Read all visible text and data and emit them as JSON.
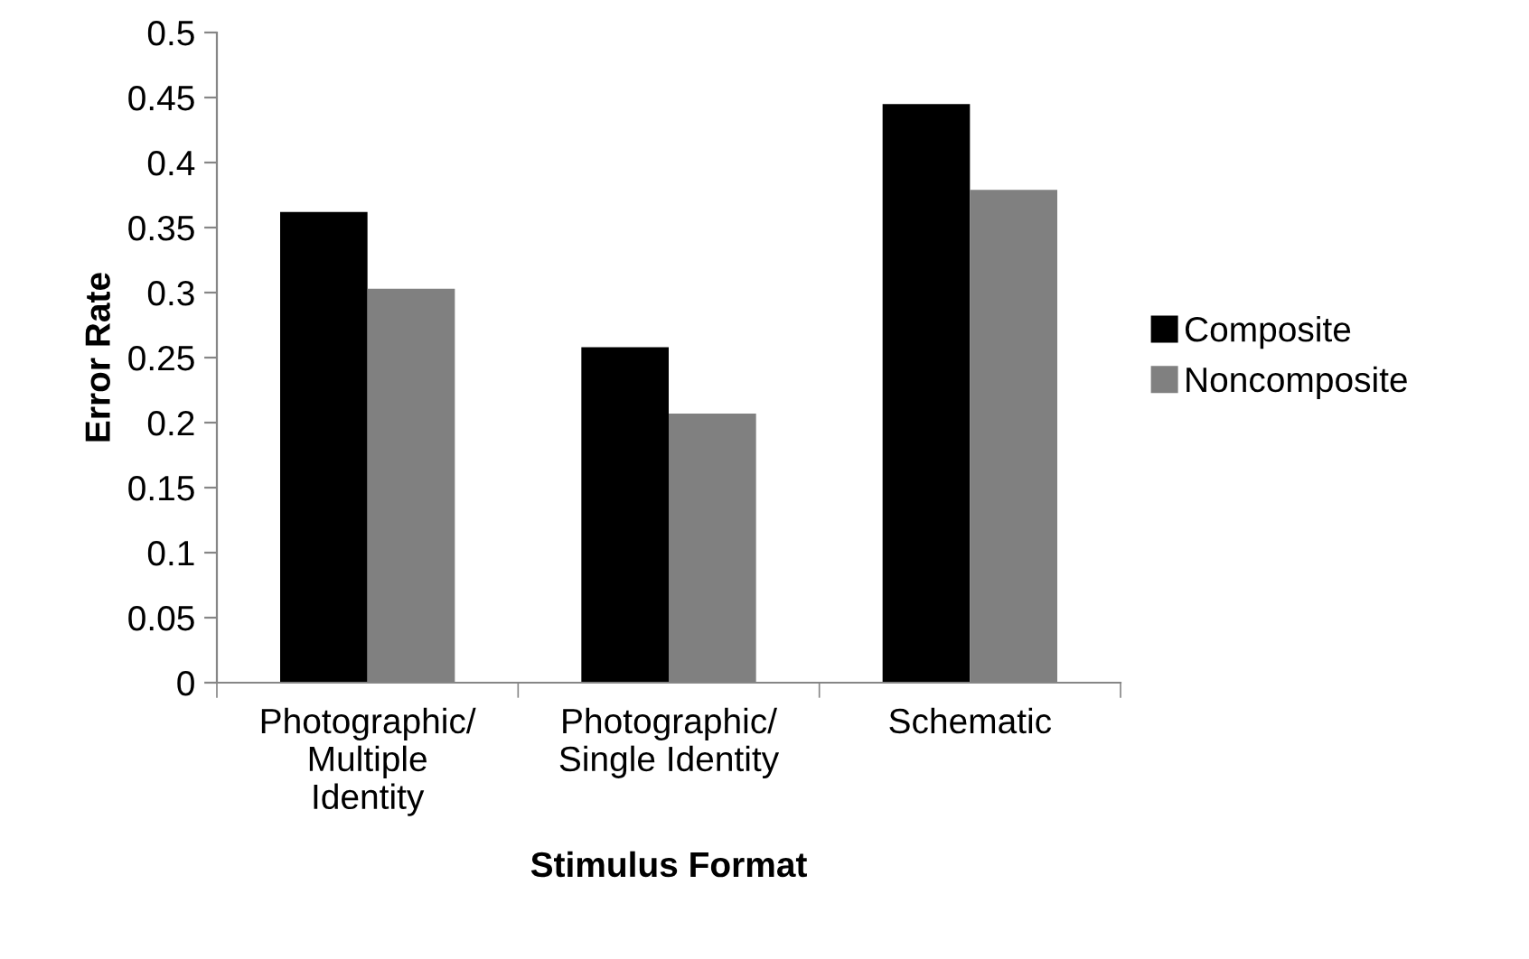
{
  "chart_data": {
    "type": "bar",
    "xlabel": "Stimulus Format",
    "ylabel": "Error Rate",
    "categories": [
      "Photographic/\nMultiple\nIdentity",
      "Photographic/\nSingle Identity",
      "Schematic"
    ],
    "series": [
      {
        "name": "Composite",
        "color": "#000000",
        "values": [
          0.362,
          0.258,
          0.445
        ]
      },
      {
        "name": "Noncomposite",
        "color": "#808080",
        "values": [
          0.303,
          0.207,
          0.379
        ]
      }
    ],
    "ylim": [
      0,
      0.5
    ],
    "yticks": [
      0,
      0.05,
      0.1,
      0.15,
      0.2,
      0.25,
      0.3,
      0.35,
      0.4,
      0.45,
      0.5
    ],
    "grid": false,
    "legend": "right"
  }
}
